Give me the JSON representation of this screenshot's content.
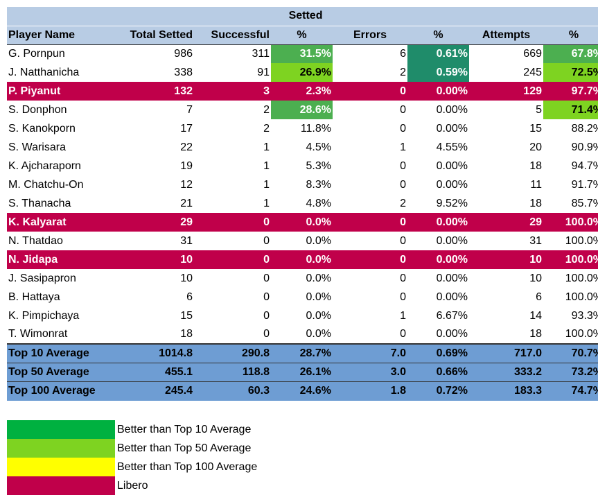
{
  "table": {
    "title": "Setted",
    "headers": [
      "Player Name",
      "Total Setted",
      "Successful",
      "%",
      "Errors",
      "%",
      "Attempts",
      "%"
    ],
    "rows": [
      {
        "name": "G. Pornpun",
        "total": "986",
        "successful": "311",
        "pct1": "31.5%",
        "errors": "6",
        "pct2": "0.61%",
        "attempts": "669",
        "pct3": "67.8%",
        "libero": false,
        "hl": [
          "",
          "",
          "",
          "",
          "",
          "g-mid",
          "",
          "g-dark",
          "",
          "g-mid"
        ]
      },
      {
        "name": "J. Natthanicha",
        "total": "338",
        "successful": "91",
        "pct1": "26.9%",
        "errors": "2",
        "pct2": "0.59%",
        "attempts": "245",
        "pct3": "72.5%",
        "libero": false
      },
      {
        "name": "P. Piyanut",
        "total": "132",
        "successful": "3",
        "pct1": "2.3%",
        "errors": "0",
        "pct2": "0.00%",
        "attempts": "129",
        "pct3": "97.7%",
        "libero": true
      },
      {
        "name": "S. Donphon",
        "total": "7",
        "successful": "2",
        "pct1": "28.6%",
        "errors": "0",
        "pct2": "0.00%",
        "attempts": "5",
        "pct3": "71.4%",
        "libero": false
      },
      {
        "name": "S. Kanokporn",
        "total": "17",
        "successful": "2",
        "pct1": "11.8%",
        "errors": "0",
        "pct2": "0.00%",
        "attempts": "15",
        "pct3": "88.2%",
        "libero": false
      },
      {
        "name": "S. Warisara",
        "total": "22",
        "successful": "1",
        "pct1": "4.5%",
        "errors": "1",
        "pct2": "4.55%",
        "attempts": "20",
        "pct3": "90.9%",
        "libero": false
      },
      {
        "name": "K. Ajcharaporn",
        "total": "19",
        "successful": "1",
        "pct1": "5.3%",
        "errors": "0",
        "pct2": "0.00%",
        "attempts": "18",
        "pct3": "94.7%",
        "libero": false
      },
      {
        "name": "M. Chatchu-On",
        "total": "12",
        "successful": "1",
        "pct1": "8.3%",
        "errors": "0",
        "pct2": "0.00%",
        "attempts": "11",
        "pct3": "91.7%",
        "libero": false
      },
      {
        "name": "S. Thanacha",
        "total": "21",
        "successful": "1",
        "pct1": "4.8%",
        "errors": "2",
        "pct2": "9.52%",
        "attempts": "18",
        "pct3": "85.7%",
        "libero": false
      },
      {
        "name": "K. Kalyarat",
        "total": "29",
        "successful": "0",
        "pct1": "0.0%",
        "errors": "0",
        "pct2": "0.00%",
        "attempts": "29",
        "pct3": "100.0%",
        "libero": true
      },
      {
        "name": "N. Thatdao",
        "total": "31",
        "successful": "0",
        "pct1": "0.0%",
        "errors": "0",
        "pct2": "0.00%",
        "attempts": "31",
        "pct3": "100.0%",
        "libero": false
      },
      {
        "name": "N. Jidapa",
        "total": "10",
        "successful": "0",
        "pct1": "0.0%",
        "errors": "0",
        "pct2": "0.00%",
        "attempts": "10",
        "pct3": "100.0%",
        "libero": true
      },
      {
        "name": "J. Sasipapron",
        "total": "10",
        "successful": "0",
        "pct1": "0.0%",
        "errors": "0",
        "pct2": "0.00%",
        "attempts": "10",
        "pct3": "100.0%",
        "libero": false
      },
      {
        "name": "B. Hattaya",
        "total": "6",
        "successful": "0",
        "pct1": "0.0%",
        "errors": "0",
        "pct2": "0.00%",
        "attempts": "6",
        "pct3": "100.0%",
        "libero": false
      },
      {
        "name": "K. Pimpichaya",
        "total": "15",
        "successful": "0",
        "pct1": "0.0%",
        "errors": "1",
        "pct2": "6.67%",
        "attempts": "14",
        "pct3": "93.3%",
        "libero": false
      },
      {
        "name": "T. Wimonrat",
        "total": "18",
        "successful": "0",
        "pct1": "0.0%",
        "errors": "0",
        "pct2": "0.00%",
        "attempts": "18",
        "pct3": "100.0%",
        "libero": false
      }
    ],
    "averages": [
      {
        "name": "Top 10 Average",
        "total": "1014.8",
        "successful": "290.8",
        "pct1": "28.7%",
        "errors": "7.0",
        "pct2": "0.69%",
        "attempts": "717.0",
        "pct3": "70.7%"
      },
      {
        "name": "Top 50 Average",
        "total": "455.1",
        "successful": "118.8",
        "pct1": "26.1%",
        "errors": "3.0",
        "pct2": "0.66%",
        "attempts": "333.2",
        "pct3": "73.2%"
      },
      {
        "name": "Top 100 Average",
        "total": "245.4",
        "successful": "60.3",
        "pct1": "24.6%",
        "errors": "1.8",
        "pct2": "0.72%",
        "attempts": "183.3",
        "pct3": "74.7%"
      }
    ]
  },
  "legend": [
    {
      "label": "Better than Top 10 Average",
      "color": "#00b140"
    },
    {
      "label": "Better than Top 50 Average",
      "color": "#7ed321"
    },
    {
      "label": "Better than Top 100 Average",
      "color": "#ffff00"
    },
    {
      "label": "Libero",
      "color": "#c0004a"
    }
  ],
  "highlight_colors": {
    "dark_green": "#1f8c6a",
    "mid_green": "#4caf50",
    "light_green": "#7ed321",
    "libero": "#c0004a",
    "header": "#b8cce4",
    "average_rows": "#6e9dd3"
  }
}
